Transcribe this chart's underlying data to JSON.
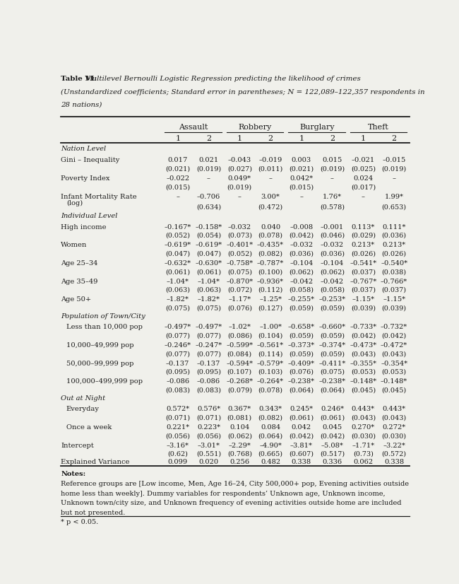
{
  "col_groups": [
    "Assault",
    "Robbery",
    "Burglary",
    "Theft"
  ],
  "col_numbers": [
    "1",
    "2",
    "1",
    "2",
    "1",
    "2",
    "1",
    "2"
  ],
  "rows": [
    {
      "label": "Nation Level",
      "type": "section",
      "indent": 0
    },
    {
      "label": "Gini – Inequality",
      "type": "data",
      "indent": 0,
      "vals": [
        "0.017",
        "0.021",
        "–0.043",
        "–0.019",
        "0.003",
        "0.015",
        "–0.021",
        "–0.015"
      ],
      "se": [
        "(0.021)",
        "(0.019)",
        "(0.027)",
        "(0.011)",
        "(0.021)",
        "(0.019)",
        "(0.025)",
        "(0.019)"
      ]
    },
    {
      "label": "Poverty Index",
      "type": "data",
      "indent": 0,
      "vals": [
        "–0.022",
        "–",
        "0.049*",
        "–",
        "0.042*",
        "–",
        "0.024",
        "–"
      ],
      "se": [
        "(0.015)",
        "",
        "(0.019)",
        "",
        "(0.015)",
        "",
        "(0.017)",
        ""
      ]
    },
    {
      "label": "Infant Mortality Rate\n(log)",
      "type": "data",
      "indent": 0,
      "vals": [
        "–",
        "–0.706",
        "–",
        "3.00*",
        "–",
        "1.76*",
        "–",
        "1.99*"
      ],
      "se": [
        "",
        "(0.634)",
        "",
        "(0.472)",
        "",
        "(0.578)",
        "",
        "(0.653)"
      ]
    },
    {
      "label": "Individual Level",
      "type": "section",
      "indent": 0
    },
    {
      "label": "High income",
      "type": "data",
      "indent": 0,
      "vals": [
        "–0.167*",
        "–0.158*",
        "–0.032",
        "0.040",
        "–0.008",
        "–0.001",
        "0.113*",
        "0.111*"
      ],
      "se": [
        "(0.052)",
        "(0.054)",
        "(0.073)",
        "(0.078)",
        "(0.042)",
        "(0.046)",
        "(0.029)",
        "(0.036)"
      ]
    },
    {
      "label": "Women",
      "type": "data",
      "indent": 0,
      "vals": [
        "–0.619*",
        "–0.619*",
        "–0.401*",
        "–0.435*",
        "–0.032",
        "–0.032",
        "0.213*",
        "0.213*"
      ],
      "se": [
        "(0.047)",
        "(0.047)",
        "(0.052)",
        "(0.082)",
        "(0.036)",
        "(0.036)",
        "(0.026)",
        "(0.026)"
      ]
    },
    {
      "label": "Age 25–34",
      "type": "data",
      "indent": 0,
      "vals": [
        "–0.632*",
        "–0.630*",
        "–0.758*",
        "–0.787*",
        "–0.104",
        "–0.104",
        "–0.541*",
        "–0.540*"
      ],
      "se": [
        "(0.061)",
        "(0.061)",
        "(0.075)",
        "(0.100)",
        "(0.062)",
        "(0.062)",
        "(0.037)",
        "(0.038)"
      ]
    },
    {
      "label": "Age 35–49",
      "type": "data",
      "indent": 0,
      "vals": [
        "–1.04*",
        "–1.04*",
        "–0.870*",
        "–0.936*",
        "–0.042",
        "–0.042",
        "–0.767*",
        "–0.766*"
      ],
      "se": [
        "(0.063)",
        "(0.063)",
        "(0.072)",
        "(0.112)",
        "(0.058)",
        "(0.058)",
        "(0.037)",
        "(0.037)"
      ]
    },
    {
      "label": "Age 50+",
      "type": "data",
      "indent": 0,
      "vals": [
        "–1.82*",
        "–1.82*",
        "–1.17*",
        "–1.25*",
        "–0.255*",
        "–0.253*",
        "–1.15*",
        "–1.15*"
      ],
      "se": [
        "(0.075)",
        "(0.075)",
        "(0.076)",
        "(0.127)",
        "(0.059)",
        "(0.059)",
        "(0.039)",
        "(0.039)"
      ]
    },
    {
      "label": "Population of Town/City",
      "type": "section",
      "indent": 0
    },
    {
      "label": "Less than 10,000 pop",
      "type": "data",
      "indent": 1,
      "vals": [
        "–0.497*",
        "–0.497*",
        "–1.02*",
        "–1.00*",
        "–0.658*",
        "–0.660*",
        "–0.733*",
        "–0.732*"
      ],
      "se": [
        "(0.077)",
        "(0.077)",
        "(0.086)",
        "(0.104)",
        "(0.059)",
        "(0.059)",
        "(0.042)",
        "(0.042)"
      ]
    },
    {
      "label": "10,000–49,999 pop",
      "type": "data",
      "indent": 1,
      "vals": [
        "–0.246*",
        "–0.247*",
        "–0.599*",
        "–0.561*",
        "–0.373*",
        "–0.374*",
        "–0.473*",
        "–0.472*"
      ],
      "se": [
        "(0.077)",
        "(0.077)",
        "(0.084)",
        "(0.114)",
        "(0.059)",
        "(0.059)",
        "(0.043)",
        "(0.043)"
      ]
    },
    {
      "label": "50,000–99,999 pop",
      "type": "data",
      "indent": 1,
      "vals": [
        "–0.137",
        "–0.137",
        "–0.594*",
        "–0.579*",
        "–0.409*",
        "–0.411*",
        "–0.355*",
        "–0.354*"
      ],
      "se": [
        "(0.095)",
        "(0.095)",
        "(0.107)",
        "(0.103)",
        "(0.076)",
        "(0.075)",
        "(0.053)",
        "(0.053)"
      ]
    },
    {
      "label": "100,000–499,999 pop",
      "type": "data",
      "indent": 1,
      "vals": [
        "–0.086",
        "–0.086",
        "–0.268*",
        "–0.264*",
        "–0.238*",
        "–0.238*",
        "–0.148*",
        "–0.148*"
      ],
      "se": [
        "(0.083)",
        "(0.083)",
        "(0.079)",
        "(0.078)",
        "(0.064)",
        "(0.064)",
        "(0.045)",
        "(0.045)"
      ]
    },
    {
      "label": "Out at Night",
      "type": "section",
      "indent": 0
    },
    {
      "label": "Everyday",
      "type": "data",
      "indent": 1,
      "vals": [
        "0.572*",
        "0.576*",
        "0.367*",
        "0.343*",
        "0.245*",
        "0.246*",
        "0.443*",
        "0.443*"
      ],
      "se": [
        "(0.071)",
        "(0.071)",
        "(0.081)",
        "(0.082)",
        "(0.061)",
        "(0.061)",
        "(0.043)",
        "(0.043)"
      ]
    },
    {
      "label": "Once a week",
      "type": "data",
      "indent": 1,
      "vals": [
        "0.221*",
        "0.223*",
        "0.104",
        "0.084",
        "0.042",
        "0.045",
        "0.270*",
        "0.272*"
      ],
      "se": [
        "(0.056)",
        "(0.056)",
        "(0.062)",
        "(0.064)",
        "(0.042)",
        "(0.042)",
        "(0.030)",
        "(0.030)"
      ]
    },
    {
      "label": "Intercept",
      "type": "data",
      "indent": 0,
      "vals": [
        "–3.16*",
        "–3.01*",
        "–2.29*",
        "–4.90*",
        "–3.81*",
        "–5.08*",
        "–1.71*",
        "–3.22*"
      ],
      "se": [
        "(0.62)",
        "(0.551)",
        "(0.768)",
        "(0.665)",
        "(0.607)",
        "(0.517)",
        "(0.73)",
        "(0.572)"
      ]
    },
    {
      "label": "Explained Variance",
      "type": "data",
      "indent": 0,
      "vals": [
        "0.099",
        "0.020",
        "0.256",
        "0.482",
        "0.338",
        "0.336",
        "0.062",
        "0.338"
      ],
      "se": [
        "",
        "",
        "",
        "",
        "",
        "",
        "",
        ""
      ]
    }
  ],
  "notes_label": "Notes:",
  "notes_body": [
    "Reference groups are [Low income, Men, Age 16–24, City 500,000+ pop, Evening activities outside",
    "home less than weekly]. Dummy variables for respondents’ Unknown age, Unknown income,",
    "Unknown town/city size, and Unknown frequency of evening activities outside home are included",
    "but not presented.",
    "* p < 0.05."
  ],
  "bg_color": "#f0f0eb",
  "text_color": "#1a1a1a",
  "line_color": "#1a1a1a"
}
